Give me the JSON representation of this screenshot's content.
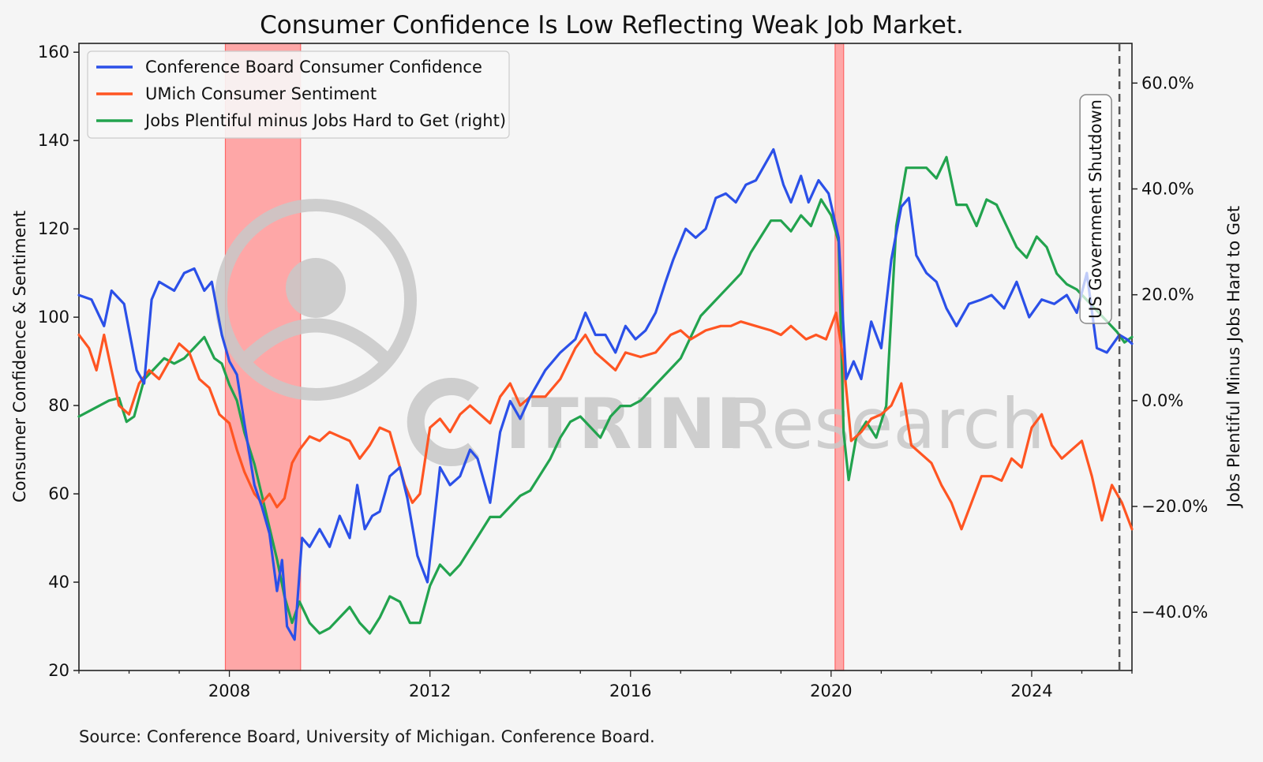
{
  "chart_data": {
    "type": "line",
    "title": "Consumer Confidence Is Low Reflecting Weak Job Market.",
    "ylabel": "Consumer Confidence & Sentiment",
    "y2label": "Jobs Plentiful Minus Jobs Hard to Get",
    "xlim": [
      2005.0,
      2026.0
    ],
    "ylim": [
      20,
      162
    ],
    "y2lim": [
      -0.51,
      0.675
    ],
    "xticks": [
      2008,
      2012,
      2016,
      2020,
      2024
    ],
    "xtick_labels": [
      "2008",
      "2012",
      "2016",
      "2020",
      "2024"
    ],
    "yticks": [
      20,
      40,
      60,
      80,
      100,
      120,
      140,
      160
    ],
    "ytick_labels": [
      "20",
      "40",
      "60",
      "80",
      "100",
      "120",
      "140",
      "160"
    ],
    "y2ticks": [
      -0.4,
      -0.2,
      0.0,
      0.2,
      0.4,
      0.6
    ],
    "y2tick_labels": [
      "−40.0%",
      "−20.0%",
      "0.0%",
      "20.0%",
      "40.0%",
      "60.0%"
    ],
    "legend_position": "top-left",
    "recessions": [
      [
        2007.92,
        2009.42
      ],
      [
        2020.08,
        2020.25
      ]
    ],
    "event_line": {
      "x": 2025.75,
      "label": "US Government Shutdown"
    },
    "watermark": "CITRINI Research",
    "series": [
      {
        "name": "Conference Board Consumer Confidence",
        "axis": "left",
        "color": "#2b50e8",
        "x": [
          2005.0,
          2005.25,
          2005.5,
          2005.65,
          2005.9,
          2006.15,
          2006.3,
          2006.45,
          2006.6,
          2006.9,
          2007.1,
          2007.3,
          2007.5,
          2007.65,
          2007.85,
          2008.0,
          2008.15,
          2008.3,
          2008.5,
          2008.65,
          2008.8,
          2008.95,
          2009.05,
          2009.15,
          2009.3,
          2009.45,
          2009.6,
          2009.8,
          2010.0,
          2010.2,
          2010.4,
          2010.55,
          2010.7,
          2010.85,
          2011.0,
          2011.2,
          2011.4,
          2011.55,
          2011.75,
          2011.95,
          2012.2,
          2012.4,
          2012.6,
          2012.8,
          2012.95,
          2013.2,
          2013.4,
          2013.6,
          2013.8,
          2014.0,
          2014.3,
          2014.6,
          2014.9,
          2015.1,
          2015.3,
          2015.5,
          2015.7,
          2015.9,
          2016.1,
          2016.3,
          2016.5,
          2016.7,
          2016.85,
          2017.1,
          2017.3,
          2017.5,
          2017.7,
          2017.9,
          2018.1,
          2018.3,
          2018.5,
          2018.7,
          2018.85,
          2019.05,
          2019.2,
          2019.4,
          2019.55,
          2019.75,
          2019.95,
          2020.15,
          2020.3,
          2020.45,
          2020.6,
          2020.8,
          2021.0,
          2021.2,
          2021.4,
          2021.55,
          2021.7,
          2021.9,
          2022.1,
          2022.3,
          2022.5,
          2022.75,
          2023.0,
          2023.2,
          2023.45,
          2023.7,
          2023.95,
          2024.2,
          2024.45,
          2024.7,
          2024.9,
          2025.1,
          2025.3,
          2025.5,
          2025.75,
          2025.9,
          2026.0
        ],
        "y": [
          105,
          104,
          98,
          106,
          103,
          88,
          85,
          104,
          108,
          106,
          110,
          111,
          106,
          108,
          96,
          90,
          87,
          76,
          62,
          57,
          51,
          38,
          45,
          30,
          27,
          50,
          48,
          52,
          48,
          55,
          50,
          62,
          52,
          55,
          56,
          64,
          66,
          59,
          46,
          40,
          66,
          62,
          64,
          70,
          68,
          58,
          74,
          81,
          77,
          82,
          88,
          92,
          95,
          101,
          96,
          96,
          92,
          98,
          95,
          97,
          101,
          108,
          113,
          120,
          118,
          120,
          127,
          128,
          126,
          130,
          131,
          135,
          138,
          130,
          126,
          132,
          126,
          131,
          128,
          118,
          86,
          90,
          86,
          99,
          93,
          113,
          125,
          127,
          114,
          110,
          108,
          102,
          98,
          103,
          104,
          105,
          102,
          108,
          100,
          104,
          103,
          105,
          101,
          110,
          93,
          92,
          96,
          95,
          94
        ]
      },
      {
        "name": "UMich Consumer Sentiment",
        "axis": "left",
        "color": "#ff5522",
        "x": [
          2005.0,
          2005.2,
          2005.35,
          2005.5,
          2005.65,
          2005.8,
          2006.0,
          2006.2,
          2006.4,
          2006.6,
          2006.8,
          2007.0,
          2007.2,
          2007.4,
          2007.6,
          2007.8,
          2008.0,
          2008.15,
          2008.3,
          2008.5,
          2008.65,
          2008.8,
          2008.95,
          2009.1,
          2009.25,
          2009.4,
          2009.6,
          2009.8,
          2010.0,
          2010.2,
          2010.4,
          2010.6,
          2010.8,
          2011.0,
          2011.2,
          2011.35,
          2011.5,
          2011.65,
          2011.8,
          2012.0,
          2012.2,
          2012.4,
          2012.6,
          2012.8,
          2013.0,
          2013.2,
          2013.4,
          2013.6,
          2013.8,
          2014.0,
          2014.3,
          2014.6,
          2014.9,
          2015.1,
          2015.3,
          2015.5,
          2015.7,
          2015.9,
          2016.2,
          2016.5,
          2016.8,
          2017.0,
          2017.2,
          2017.5,
          2017.8,
          2018.0,
          2018.2,
          2018.5,
          2018.8,
          2019.0,
          2019.2,
          2019.5,
          2019.7,
          2019.9,
          2020.1,
          2020.25,
          2020.4,
          2020.6,
          2020.8,
          2021.0,
          2021.2,
          2021.4,
          2021.6,
          2021.8,
          2022.0,
          2022.2,
          2022.4,
          2022.6,
          2022.8,
          2023.0,
          2023.2,
          2023.4,
          2023.6,
          2023.8,
          2024.0,
          2024.2,
          2024.4,
          2024.6,
          2024.8,
          2025.0,
          2025.2,
          2025.4,
          2025.6,
          2025.8,
          2026.0
        ],
        "y": [
          96,
          93,
          88,
          96,
          88,
          80,
          78,
          85,
          88,
          86,
          90,
          94,
          92,
          86,
          84,
          78,
          76,
          70,
          65,
          60,
          58,
          60,
          57,
          59,
          67,
          70,
          73,
          72,
          74,
          73,
          72,
          68,
          71,
          75,
          74,
          68,
          62,
          58,
          60,
          75,
          77,
          74,
          78,
          80,
          78,
          76,
          82,
          85,
          80,
          82,
          82,
          86,
          93,
          96,
          92,
          90,
          88,
          92,
          91,
          92,
          96,
          97,
          95,
          97,
          98,
          98,
          99,
          98,
          97,
          96,
          98,
          95,
          96,
          95,
          101,
          90,
          72,
          74,
          77,
          78,
          80,
          85,
          71,
          69,
          67,
          62,
          58,
          52,
          58,
          64,
          64,
          63,
          68,
          66,
          75,
          78,
          71,
          68,
          70,
          72,
          64,
          54,
          62,
          58,
          52
        ]
      },
      {
        "name": "Jobs Plentiful minus Jobs Hard to Get (right)",
        "axis": "right",
        "color": "#22a34e",
        "x": [
          2005.0,
          2005.2,
          2005.4,
          2005.6,
          2005.8,
          2005.95,
          2006.1,
          2006.3,
          2006.5,
          2006.7,
          2006.9,
          2007.1,
          2007.3,
          2007.5,
          2007.7,
          2007.85,
          2008.0,
          2008.15,
          2008.3,
          2008.5,
          2008.65,
          2008.8,
          2008.95,
          2009.1,
          2009.25,
          2009.4,
          2009.6,
          2009.8,
          2010.0,
          2010.2,
          2010.4,
          2010.6,
          2010.8,
          2011.0,
          2011.2,
          2011.4,
          2011.6,
          2011.8,
          2012.0,
          2012.2,
          2012.4,
          2012.6,
          2012.8,
          2013.0,
          2013.2,
          2013.4,
          2013.6,
          2013.8,
          2014.0,
          2014.2,
          2014.4,
          2014.6,
          2014.8,
          2015.0,
          2015.2,
          2015.4,
          2015.6,
          2015.8,
          2016.0,
          2016.2,
          2016.4,
          2016.6,
          2016.8,
          2017.0,
          2017.2,
          2017.4,
          2017.6,
          2017.8,
          2018.0,
          2018.2,
          2018.4,
          2018.6,
          2018.8,
          2019.0,
          2019.2,
          2019.4,
          2019.6,
          2019.8,
          2020.0,
          2020.15,
          2020.25,
          2020.35,
          2020.5,
          2020.7,
          2020.9,
          2021.1,
          2021.3,
          2021.5,
          2021.7,
          2021.9,
          2022.1,
          2022.3,
          2022.5,
          2022.7,
          2022.9,
          2023.1,
          2023.3,
          2023.5,
          2023.7,
          2023.9,
          2024.1,
          2024.3,
          2024.5,
          2024.7,
          2024.9,
          2025.1,
          2025.3,
          2025.5,
          2025.7,
          2025.85,
          2026.0
        ],
        "y": [
          -0.03,
          -0.02,
          -0.01,
          0.0,
          0.005,
          -0.04,
          -0.03,
          0.04,
          0.06,
          0.08,
          0.07,
          0.08,
          0.1,
          0.12,
          0.08,
          0.07,
          0.03,
          0.0,
          -0.06,
          -0.12,
          -0.18,
          -0.24,
          -0.3,
          -0.37,
          -0.42,
          -0.38,
          -0.42,
          -0.44,
          -0.43,
          -0.41,
          -0.39,
          -0.42,
          -0.44,
          -0.41,
          -0.37,
          -0.38,
          -0.42,
          -0.42,
          -0.35,
          -0.31,
          -0.33,
          -0.31,
          -0.28,
          -0.25,
          -0.22,
          -0.22,
          -0.2,
          -0.18,
          -0.17,
          -0.14,
          -0.11,
          -0.07,
          -0.04,
          -0.03,
          -0.05,
          -0.07,
          -0.03,
          -0.01,
          -0.01,
          0.0,
          0.02,
          0.04,
          0.06,
          0.08,
          0.12,
          0.16,
          0.18,
          0.2,
          0.22,
          0.24,
          0.28,
          0.31,
          0.34,
          0.34,
          0.32,
          0.35,
          0.33,
          0.38,
          0.35,
          0.3,
          -0.06,
          -0.15,
          -0.07,
          -0.04,
          -0.07,
          -0.01,
          0.33,
          0.44,
          0.44,
          0.44,
          0.42,
          0.46,
          0.37,
          0.37,
          0.33,
          0.38,
          0.37,
          0.33,
          0.29,
          0.27,
          0.31,
          0.29,
          0.24,
          0.22,
          0.21,
          0.19,
          0.17,
          0.15,
          0.13,
          0.11,
          0.12
        ]
      }
    ]
  },
  "footer": {
    "source": "Source: Conference Board, University of Michigan. Conference Board."
  },
  "colors": {
    "background": "#f5f5f5",
    "recession": "#ff9e9e",
    "recession_edge": "#ff6666",
    "watermark": "#c8c8c8"
  }
}
